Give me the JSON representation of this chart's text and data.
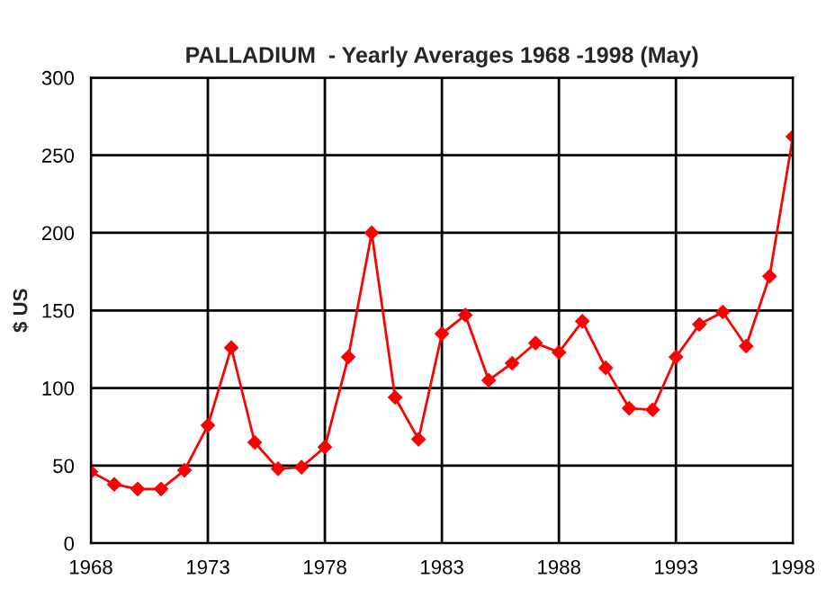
{
  "chart_data": {
    "type": "line",
    "title": "PALLADIUM  - Yearly Averages 1968 -1998 (May)",
    "ylabel": "$ US",
    "x": [
      1968,
      1969,
      1970,
      1971,
      1972,
      1973,
      1974,
      1975,
      1976,
      1977,
      1978,
      1979,
      1980,
      1981,
      1982,
      1983,
      1984,
      1985,
      1986,
      1987,
      1988,
      1989,
      1990,
      1991,
      1992,
      1993,
      1994,
      1995,
      1996,
      1997,
      1998
    ],
    "series": [
      {
        "color": "#ff0000",
        "values": [
          46,
          38,
          35,
          35,
          47,
          76,
          126,
          65,
          48,
          49,
          62,
          120,
          200,
          94,
          67,
          135,
          147,
          105,
          116,
          129,
          123,
          143,
          113,
          87,
          86,
          120,
          141,
          149,
          127,
          172,
          262
        ]
      }
    ],
    "xlim": [
      1968,
      1998
    ],
    "xticks": [
      1968,
      1973,
      1978,
      1983,
      1988,
      1993,
      1998
    ],
    "ylim": [
      0,
      300
    ],
    "yticks": [
      0,
      50,
      100,
      150,
      200,
      250,
      300
    ],
    "grid": true,
    "marker": "diamond",
    "line_style": "solid",
    "legend": false
  }
}
